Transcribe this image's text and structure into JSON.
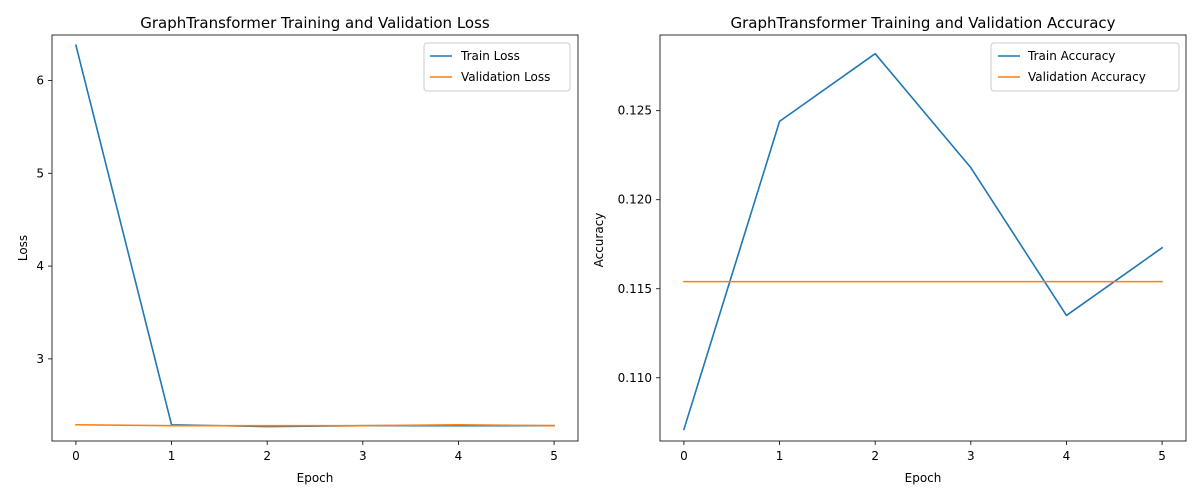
{
  "chart_data": [
    {
      "type": "line",
      "title": "GraphTransformer Training and Validation Loss",
      "xlabel": "Epoch",
      "ylabel": "Loss",
      "x": [
        0,
        1,
        2,
        3,
        4,
        5
      ],
      "xlim": [
        -0.25,
        5.25
      ],
      "ylim": [
        2.115,
        6.49
      ],
      "xticks": [
        0,
        1,
        2,
        3,
        4,
        5
      ],
      "yticks": [
        3,
        4,
        5,
        6
      ],
      "ytick_labels": [
        "3",
        "4",
        "5",
        "6"
      ],
      "grid": false,
      "legend_position": "top-right",
      "series": [
        {
          "name": "Train Loss",
          "color": "#1f77b4",
          "values": [
            6.38,
            2.29,
            2.27,
            2.28,
            2.28,
            2.28
          ]
        },
        {
          "name": "Validation Loss",
          "color": "#ff7f0e",
          "values": [
            2.29,
            2.28,
            2.28,
            2.28,
            2.29,
            2.28
          ]
        }
      ]
    },
    {
      "type": "line",
      "title": "GraphTransformer Training and Validation Accuracy",
      "xlabel": "Epoch",
      "ylabel": "Accuracy",
      "x": [
        0,
        1,
        2,
        3,
        4,
        5
      ],
      "xlim": [
        -0.25,
        5.25
      ],
      "ylim": [
        0.10645,
        0.12925
      ],
      "xticks": [
        0,
        1,
        2,
        3,
        4,
        5
      ],
      "yticks": [
        0.11,
        0.115,
        0.12,
        0.125
      ],
      "ytick_labels": [
        "0.110",
        "0.115",
        "0.120",
        "0.125"
      ],
      "grid": false,
      "legend_position": "top-right",
      "series": [
        {
          "name": "Train Accuracy",
          "color": "#1f77b4",
          "values": [
            0.1071,
            0.1244,
            0.1282,
            0.1218,
            0.1135,
            0.1173
          ]
        },
        {
          "name": "Validation Accuracy",
          "color": "#ff7f0e",
          "values": [
            0.1154,
            0.1154,
            0.1154,
            0.1154,
            0.1154,
            0.1154
          ]
        }
      ]
    }
  ]
}
